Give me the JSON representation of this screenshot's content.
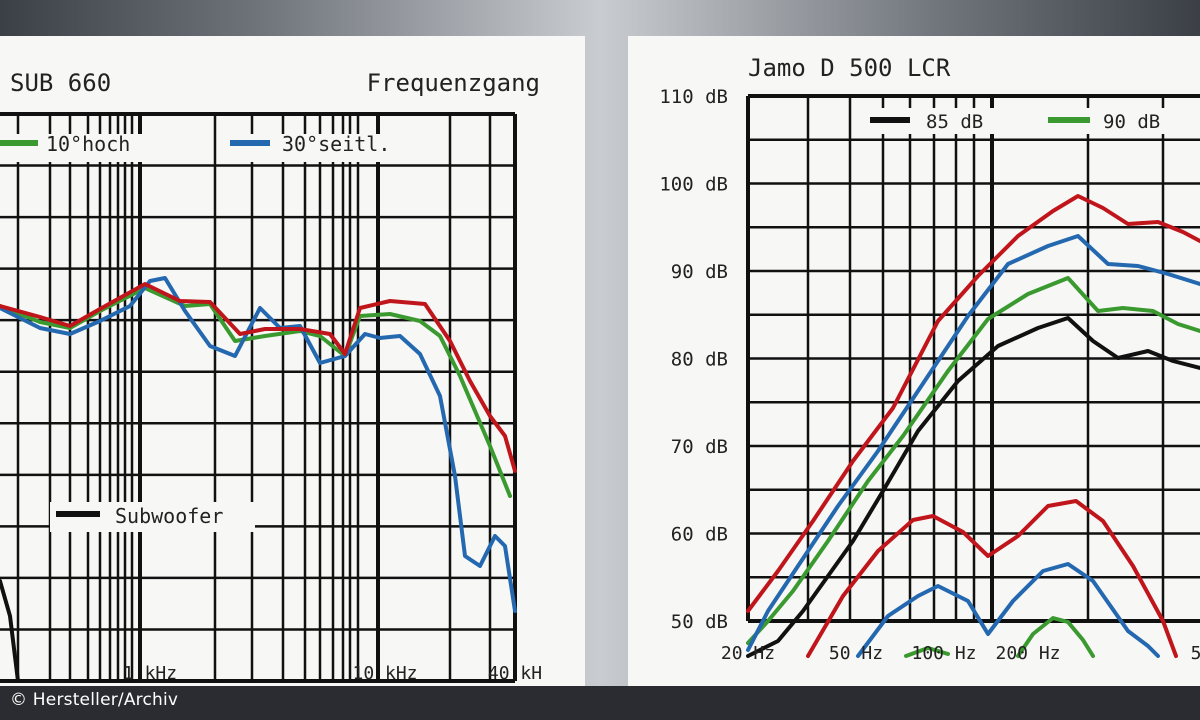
{
  "credit": "© Hersteller/Archiv",
  "chart_data": [
    {
      "type": "line",
      "title_left": "SUB 660",
      "title_right": "Frequenzgang",
      "x_tick_labels": [
        "1 kHz",
        "10 kHz",
        "40 kH"
      ],
      "legend": [
        {
          "name": "10°hoch",
          "color": "#3a9a2f"
        },
        {
          "name": "30°seitl.",
          "color": "#2468b0"
        },
        {
          "name": "Subwoofer",
          "color": "#111111"
        }
      ],
      "series": [
        {
          "name": "10°hoch",
          "color": "#3a9a2f",
          "points": [
            [
              0,
              270
            ],
            [
              40,
              286
            ],
            [
              70,
              292
            ],
            [
              100,
              275
            ],
            [
              145,
              252
            ],
            [
              185,
              270
            ],
            [
              210,
              268
            ],
            [
              235,
              305
            ],
            [
              265,
              300
            ],
            [
              300,
              295
            ],
            [
              320,
              300
            ],
            [
              345,
              320
            ],
            [
              360,
              280
            ],
            [
              390,
              278
            ],
            [
              420,
              285
            ],
            [
              440,
              300
            ],
            [
              460,
              340
            ],
            [
              490,
              410
            ],
            [
              510,
              460
            ]
          ]
        },
        {
          "name": "30°seitl.",
          "color": "#2468b0",
          "points": [
            [
              0,
              272
            ],
            [
              40,
              292
            ],
            [
              70,
              298
            ],
            [
              100,
              285
            ],
            [
              130,
              270
            ],
            [
              150,
              245
            ],
            [
              165,
              242
            ],
            [
              185,
              275
            ],
            [
              210,
              310
            ],
            [
              235,
              320
            ],
            [
              260,
              272
            ],
            [
              280,
              292
            ],
            [
              300,
              290
            ],
            [
              320,
              327
            ],
            [
              345,
              320
            ],
            [
              365,
              298
            ],
            [
              380,
              302
            ],
            [
              400,
              300
            ],
            [
              420,
              318
            ],
            [
              440,
              360
            ],
            [
              455,
              440
            ],
            [
              465,
              520
            ],
            [
              480,
              530
            ],
            [
              495,
              500
            ],
            [
              505,
              510
            ],
            [
              515,
              575
            ]
          ]
        },
        {
          "name": "red",
          "color": "#c0151b",
          "points": [
            [
              0,
              270
            ],
            [
              40,
              281
            ],
            [
              70,
              290
            ],
            [
              100,
              273
            ],
            [
              145,
              248
            ],
            [
              180,
              265
            ],
            [
              210,
              266
            ],
            [
              240,
              298
            ],
            [
              265,
              293
            ],
            [
              300,
              293
            ],
            [
              330,
              298
            ],
            [
              345,
              318
            ],
            [
              360,
              272
            ],
            [
              390,
              265
            ],
            [
              425,
              268
            ],
            [
              450,
              305
            ],
            [
              470,
              345
            ],
            [
              490,
              380
            ],
            [
              505,
              400
            ],
            [
              515,
              435
            ]
          ]
        },
        {
          "name": "Subwoofer",
          "color": "#111111",
          "points": [
            [
              0,
              545
            ],
            [
              10,
              580
            ],
            [
              18,
              645
            ]
          ]
        }
      ]
    },
    {
      "type": "line",
      "title": "Jamo D 500 LCR",
      "y_tick_labels": [
        "110 dB",
        "100 dB",
        "90 dB",
        "80 dB",
        "70 dB",
        "60 dB",
        "50 dB"
      ],
      "x_tick_labels": [
        "20 Hz",
        "50 Hz",
        "100 Hz",
        "200 Hz",
        "5"
      ],
      "ylim": [
        50,
        110
      ],
      "legend": [
        {
          "name": "85 dB",
          "color": "#111111"
        },
        {
          "name": "90 dB",
          "color": "#3a9a2f"
        }
      ],
      "series": [
        {
          "name": "85 dB",
          "color": "#111111",
          "level": 85,
          "points": [
            [
              120,
              620
            ],
            [
              150,
              605
            ],
            [
              175,
              575
            ],
            [
              200,
              540
            ],
            [
              225,
              505
            ],
            [
              255,
              455
            ],
            [
              290,
              395
            ],
            [
              330,
              345
            ],
            [
              370,
              310
            ],
            [
              410,
              292
            ],
            [
              440,
              282
            ],
            [
              465,
              305
            ],
            [
              490,
              322
            ],
            [
              520,
              315
            ],
            [
              545,
              325
            ],
            [
              572,
              332
            ]
          ]
        },
        {
          "name": "90 dB",
          "color": "#3a9a2f",
          "level": 90,
          "points": [
            [
              120,
              607
            ],
            [
              140,
              585
            ],
            [
              165,
              555
            ],
            [
              200,
              505
            ],
            [
              240,
              445
            ],
            [
              275,
              400
            ],
            [
              320,
              335
            ],
            [
              360,
              283
            ],
            [
              400,
              258
            ],
            [
              440,
              242
            ],
            [
              470,
              275
            ],
            [
              495,
              272
            ],
            [
              525,
              275
            ],
            [
              550,
              288
            ],
            [
              572,
              295
            ]
          ]
        },
        {
          "name": "blue",
          "color": "#2468b0",
          "points": [
            [
              120,
              614
            ],
            [
              140,
              575
            ],
            [
              170,
              530
            ],
            [
              210,
              470
            ],
            [
              250,
              415
            ],
            [
              300,
              340
            ],
            [
              340,
              280
            ],
            [
              380,
              228
            ],
            [
              420,
              210
            ],
            [
              450,
              200
            ],
            [
              480,
              228
            ],
            [
              510,
              230
            ],
            [
              540,
              238
            ],
            [
              572,
              248
            ]
          ]
        },
        {
          "name": "red",
          "color": "#c0151b",
          "points": [
            [
              120,
              575
            ],
            [
              150,
              535
            ],
            [
              185,
              485
            ],
            [
              225,
              425
            ],
            [
              265,
              372
            ],
            [
              310,
              285
            ],
            [
              350,
              240
            ],
            [
              390,
              200
            ],
            [
              425,
              175
            ],
            [
              450,
              160
            ],
            [
              475,
              172
            ],
            [
              500,
              188
            ],
            [
              530,
              186
            ],
            [
              555,
              196
            ],
            [
              572,
              205
            ]
          ]
        },
        {
          "name": "red-2",
          "color": "#c0151b",
          "points": [
            [
              180,
              620
            ],
            [
              215,
              560
            ],
            [
              250,
              515
            ],
            [
              285,
              484
            ],
            [
              305,
              480
            ],
            [
              335,
              496
            ],
            [
              360,
              520
            ],
            [
              390,
              500
            ],
            [
              420,
              470
            ],
            [
              448,
              465
            ],
            [
              475,
              485
            ],
            [
              505,
              530
            ],
            [
              535,
              585
            ],
            [
              548,
              620
            ]
          ]
        },
        {
          "name": "blue-2",
          "color": "#2468b0",
          "points": [
            [
              230,
              620
            ],
            [
              260,
              580
            ],
            [
              290,
              560
            ],
            [
              310,
              550
            ],
            [
              340,
              565
            ],
            [
              360,
              598
            ],
            [
              385,
              565
            ],
            [
              415,
              535
            ],
            [
              440,
              528
            ],
            [
              465,
              545
            ],
            [
              500,
              595
            ],
            [
              520,
              610
            ],
            [
              530,
              620
            ]
          ]
        },
        {
          "name": "green-2",
          "color": "#3a9a2f",
          "points": [
            [
              278,
              620
            ],
            [
              300,
              612
            ],
            [
              320,
              618
            ]
          ]
        },
        {
          "name": "green-3",
          "color": "#3a9a2f",
          "points": [
            [
              390,
              620
            ],
            [
              405,
              598
            ],
            [
              425,
              582
            ],
            [
              440,
              586
            ],
            [
              455,
              604
            ],
            [
              465,
              620
            ]
          ]
        }
      ]
    }
  ]
}
